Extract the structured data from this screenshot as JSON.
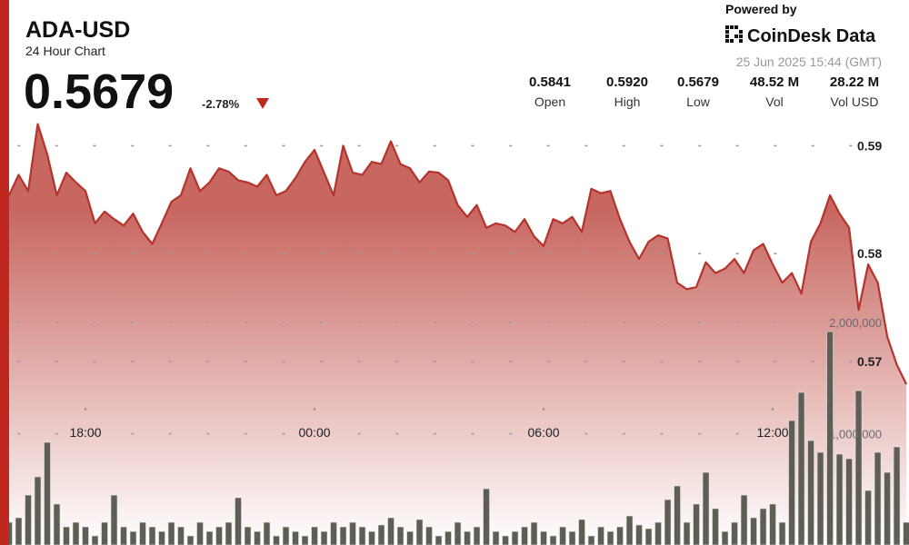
{
  "header": {
    "title": "ADA-USD",
    "subtitle": "24 Hour Chart",
    "price": "0.5679",
    "change": "-2.78%",
    "powered_by": "Powered by",
    "brand": "CoinDesk Data",
    "timestamp": "25 Jun 2025 15:44 (GMT)"
  },
  "stats": [
    {
      "value": "0.5841",
      "label": "Open"
    },
    {
      "value": "0.5920",
      "label": "High"
    },
    {
      "value": "0.5679",
      "label": "Low"
    },
    {
      "value": "48.52 M",
      "label": "Vol"
    },
    {
      "value": "28.22 M",
      "label": "Vol USD"
    }
  ],
  "chart_data": {
    "type": "line",
    "x": [
      16,
      16.25,
      16.5,
      16.75,
      17,
      17.25,
      17.5,
      17.75,
      18,
      18.25,
      18.5,
      18.75,
      19,
      19.25,
      19.5,
      19.75,
      20,
      20.25,
      20.5,
      20.75,
      21,
      21.25,
      21.5,
      21.75,
      22,
      22.25,
      22.5,
      22.75,
      23,
      23.25,
      23.5,
      23.75,
      24,
      24.25,
      24.5,
      24.75,
      25,
      25.25,
      25.5,
      25.75,
      26,
      26.25,
      26.5,
      26.75,
      27,
      27.25,
      27.5,
      27.75,
      28,
      28.25,
      28.5,
      28.75,
      29,
      29.25,
      29.5,
      29.75,
      30,
      30.25,
      30.5,
      30.75,
      31,
      31.25,
      31.5,
      31.75,
      32,
      32.25,
      32.5,
      32.75,
      33,
      33.25,
      33.5,
      33.75,
      34,
      34.25,
      34.5,
      34.75,
      35,
      35.25,
      35.5,
      35.75,
      36,
      36.25,
      36.5,
      36.75,
      37,
      37.25,
      37.5,
      37.75,
      38,
      38.25,
      38.5,
      38.75,
      39,
      39.25,
      39.5
    ],
    "xlim": [
      16,
      39.57
    ],
    "xticks": [
      {
        "value": 18,
        "label": "18:00"
      },
      {
        "value": 24,
        "label": "00:00"
      },
      {
        "value": 30,
        "label": "06:00"
      },
      {
        "value": 36,
        "label": "12:00"
      }
    ],
    "ylim": [
      0.553,
      0.6035
    ],
    "yticks": [
      0.57,
      0.58,
      0.59
    ],
    "y2lim": [
      0,
      4900000
    ],
    "y2ticks": [
      {
        "value": 1000000,
        "label": "1,000,000"
      },
      {
        "value": 2000000,
        "label": "2,000,000"
      }
    ],
    "grid": true,
    "series": [
      {
        "color": "#b5332b",
        "values": [
          0.5854,
          0.5873,
          0.5858,
          0.592,
          0.5892,
          0.5854,
          0.5875,
          0.5866,
          0.5858,
          0.5828,
          0.5839,
          0.5832,
          0.5826,
          0.5837,
          0.582,
          0.5809,
          0.5828,
          0.5848,
          0.5854,
          0.5879,
          0.5858,
          0.5866,
          0.5879,
          0.5876,
          0.5868,
          0.5866,
          0.5862,
          0.5873,
          0.5854,
          0.5858,
          0.587,
          0.5885,
          0.5896,
          0.5875,
          0.5854,
          0.59,
          0.5875,
          0.5873,
          0.5885,
          0.5883,
          0.5904,
          0.5883,
          0.5879,
          0.5866,
          0.5876,
          0.5875,
          0.5868,
          0.5845,
          0.5834,
          0.5845,
          0.5824,
          0.5828,
          0.5826,
          0.582,
          0.5832,
          0.5816,
          0.5807,
          0.5832,
          0.5828,
          0.5834,
          0.582,
          0.586,
          0.5856,
          0.5858,
          0.5832,
          0.5811,
          0.5795,
          0.5811,
          0.5817,
          0.5814,
          0.5773,
          0.5767,
          0.5769,
          0.5792,
          0.5782,
          0.5786,
          0.5795,
          0.5782,
          0.5803,
          0.5809,
          0.579,
          0.5773,
          0.5782,
          0.5763,
          0.5811,
          0.5828,
          0.5854,
          0.5837,
          0.5824,
          0.5748,
          0.579,
          0.5773,
          0.5723,
          0.5697,
          0.5679
        ]
      },
      {
        "type": "bar",
        "axis": "y2",
        "color": "#5e5e56",
        "values": [
          204000,
          245000,
          449000,
          613000,
          923000,
          368000,
          163000,
          204000,
          163000,
          82000,
          204000,
          449000,
          163000,
          122000,
          204000,
          163000,
          122000,
          204000,
          163000,
          82000,
          204000,
          122000,
          163000,
          204000,
          425000,
          163000,
          122000,
          204000,
          82000,
          163000,
          122000,
          82000,
          163000,
          122000,
          204000,
          163000,
          204000,
          163000,
          122000,
          180000,
          245000,
          163000,
          122000,
          229000,
          163000,
          82000,
          122000,
          204000,
          122000,
          163000,
          506000,
          122000,
          82000,
          122000,
          163000,
          204000,
          122000,
          82000,
          163000,
          122000,
          229000,
          82000,
          163000,
          122000,
          163000,
          261000,
          180000,
          147000,
          204000,
          408000,
          531000,
          204000,
          368000,
          653000,
          327000,
          122000,
          204000,
          449000,
          245000,
          327000,
          368000,
          204000,
          1119000,
          1372000,
          939000,
          833000,
          1919000,
          817000,
          776000,
          1388000,
          490000,
          833000,
          653000,
          882000,
          204000
        ]
      }
    ]
  }
}
